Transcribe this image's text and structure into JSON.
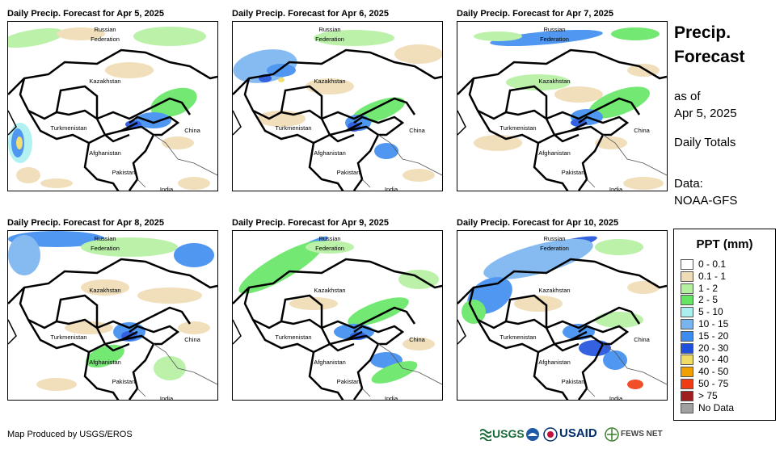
{
  "panels": [
    {
      "title": "Daily Precip. Forecast for Apr 5, 2025"
    },
    {
      "title": "Daily Precip. Forecast for Apr 6, 2025"
    },
    {
      "title": "Daily Precip. Forecast for Apr 7, 2025"
    },
    {
      "title": "Daily Precip. Forecast for Apr 8, 2025"
    },
    {
      "title": "Daily Precip. Forecast for Apr 9, 2025"
    },
    {
      "title": "Daily Precip. Forecast for Apr 10, 2025"
    }
  ],
  "map_labels": {
    "russia_line1": "Russian",
    "russia_line2": "Federation",
    "kazakhstan": "Kazakhstan",
    "turkmenistan": "Turkmenistan",
    "afghanistan": "Afghanistan",
    "pakistan": "Pakistan",
    "china": "China",
    "india": "India"
  },
  "sidebar": {
    "title_line1": "Precip.",
    "title_line2": "Forecast",
    "as_of_line1": "as of",
    "as_of_line2": "Apr 5, 2025",
    "totals": "Daily Totals",
    "data_line1": "Data:",
    "data_line2": "NOAA-GFS"
  },
  "legend": {
    "title": "PPT (mm)",
    "items": [
      {
        "label": "0 - 0.1",
        "color": "#ffffff"
      },
      {
        "label": "0.1 - 1",
        "color": "#f0dcb4"
      },
      {
        "label": "1 - 2",
        "color": "#b4f0a0"
      },
      {
        "label": "2 - 5",
        "color": "#64e664"
      },
      {
        "label": "5 - 10",
        "color": "#aaf0f0"
      },
      {
        "label": "10 - 15",
        "color": "#78b4f0"
      },
      {
        "label": "15 - 20",
        "color": "#3c8cf0"
      },
      {
        "label": "20 - 30",
        "color": "#1e50dc"
      },
      {
        "label": "30 - 40",
        "color": "#f0dc64"
      },
      {
        "label": "40 - 50",
        "color": "#f0a000"
      },
      {
        "label": "50 - 75",
        "color": "#f03c14"
      },
      {
        "label": "> 75",
        "color": "#a01e1e"
      },
      {
        "label": "No Data",
        "color": "#a0a0a0"
      }
    ]
  },
  "credit": "Map Produced by USGS/EROS",
  "logos": {
    "usgs": "USGS",
    "usaid": "USAID",
    "fewsnet": "FEWS NET"
  }
}
